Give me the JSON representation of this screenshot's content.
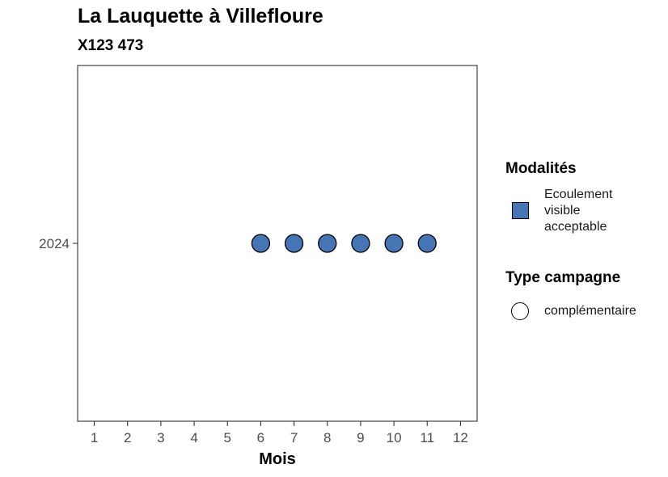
{
  "chart_data": {
    "type": "scatter",
    "title": "La Lauquette à Villefloure",
    "subtitle": "X123 473",
    "xlabel": "Mois",
    "ylabel": "",
    "x_ticks": [
      1,
      2,
      3,
      4,
      5,
      6,
      7,
      8,
      9,
      10,
      11,
      12
    ],
    "xlim": [
      0.5,
      12.5
    ],
    "y_categories": [
      "2024"
    ],
    "grid": false,
    "legend_position": "right",
    "series": [
      {
        "modalite": "Ecoulement visible acceptable",
        "type_campagne": "complémentaire",
        "color": "#4575b4",
        "points": [
          {
            "x": 6,
            "y": "2024"
          },
          {
            "x": 7,
            "y": "2024"
          },
          {
            "x": 8,
            "y": "2024"
          },
          {
            "x": 9,
            "y": "2024"
          },
          {
            "x": 10,
            "y": "2024"
          },
          {
            "x": 11,
            "y": "2024"
          }
        ]
      }
    ]
  },
  "legend": {
    "modalites": {
      "title": "Modalités",
      "items": [
        {
          "label": "Ecoulement visible acceptable",
          "color": "#4575b4"
        }
      ]
    },
    "type_campagne": {
      "title": "Type campagne",
      "items": [
        {
          "label": "complémentaire"
        }
      ]
    }
  }
}
